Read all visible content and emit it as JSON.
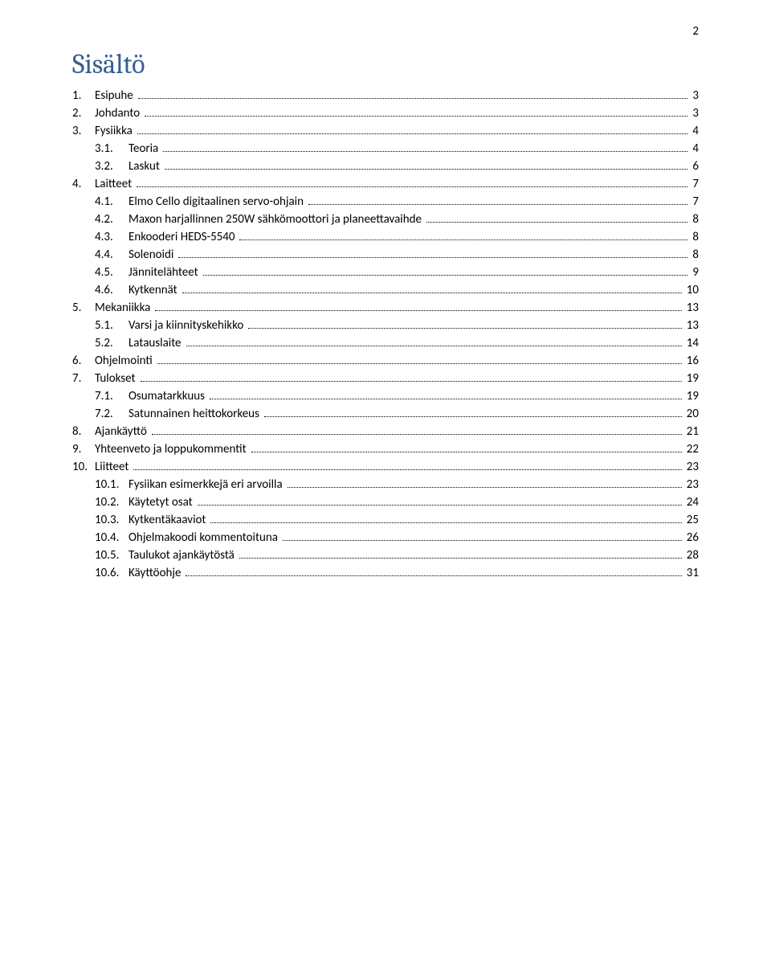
{
  "page_number": "2",
  "title": "Sisältö",
  "colors": {
    "title": "#365f91",
    "text": "#000000",
    "background": "#ffffff",
    "dots": "#000000"
  },
  "typography": {
    "title_font": "Cambria",
    "body_font": "Calibri",
    "title_fontsize": 34,
    "body_fontsize": 15
  },
  "toc": [
    {
      "level": 1,
      "num": "1.",
      "text": "Esipuhe",
      "page": "3"
    },
    {
      "level": 1,
      "num": "2.",
      "text": "Johdanto",
      "page": "3"
    },
    {
      "level": 1,
      "num": "3.",
      "text": "Fysiikka",
      "page": "4"
    },
    {
      "level": 2,
      "num": "3.1.",
      "text": "Teoria",
      "page": "4"
    },
    {
      "level": 2,
      "num": "3.2.",
      "text": "Laskut",
      "page": "6"
    },
    {
      "level": 1,
      "num": "4.",
      "text": "Laitteet",
      "page": "7"
    },
    {
      "level": 2,
      "num": "4.1.",
      "text": "Elmo Cello digitaalinen servo-ohjain",
      "page": "7"
    },
    {
      "level": 2,
      "num": "4.2.",
      "text": "Maxon harjallinnen 250W sähkömoottori ja planeettavaihde",
      "page": "8"
    },
    {
      "level": 2,
      "num": "4.3.",
      "text": "Enkooderi HEDS-5540",
      "page": "8"
    },
    {
      "level": 2,
      "num": "4.4.",
      "text": "Solenoidi",
      "page": "8"
    },
    {
      "level": 2,
      "num": "4.5.",
      "text": "Jännitelähteet",
      "page": "9"
    },
    {
      "level": 2,
      "num": "4.6.",
      "text": "Kytkennät",
      "page": "10"
    },
    {
      "level": 1,
      "num": "5.",
      "text": "Mekaniikka",
      "page": "13"
    },
    {
      "level": 2,
      "num": "5.1.",
      "text": "Varsi ja kiinnityskehikko",
      "page": "13"
    },
    {
      "level": 2,
      "num": "5.2.",
      "text": "Latauslaite",
      "page": "14"
    },
    {
      "level": 1,
      "num": "6.",
      "text": "Ohjelmointi",
      "page": "16"
    },
    {
      "level": 1,
      "num": "7.",
      "text": "Tulokset",
      "page": "19"
    },
    {
      "level": 2,
      "num": "7.1.",
      "text": "Osumatarkkuus",
      "page": "19"
    },
    {
      "level": 2,
      "num": "7.2.",
      "text": "Satunnainen heittokorkeus",
      "page": "20"
    },
    {
      "level": 1,
      "num": "8.",
      "text": "Ajankäyttö",
      "page": "21"
    },
    {
      "level": 1,
      "num": "9.",
      "text": "Yhteenveto ja loppukommentit",
      "page": "22"
    },
    {
      "level": 1,
      "num": "10.",
      "text": "Liitteet",
      "page": "23"
    },
    {
      "level": 2,
      "num": "10.1.",
      "text": "Fysiikan esimerkkejä eri arvoilla",
      "page": "23"
    },
    {
      "level": 2,
      "num": "10.2.",
      "text": "Käytetyt osat",
      "page": "24"
    },
    {
      "level": 2,
      "num": "10.3.",
      "text": "Kytkentäkaaviot",
      "page": "25"
    },
    {
      "level": 2,
      "num": "10.4.",
      "text": "Ohjelmakoodi kommentoituna",
      "page": "26"
    },
    {
      "level": 2,
      "num": "10.5.",
      "text": "Taulukot ajankäytöstä",
      "page": "28"
    },
    {
      "level": 2,
      "num": "10.6.",
      "text": "Käyttöohje",
      "page": "31"
    }
  ]
}
